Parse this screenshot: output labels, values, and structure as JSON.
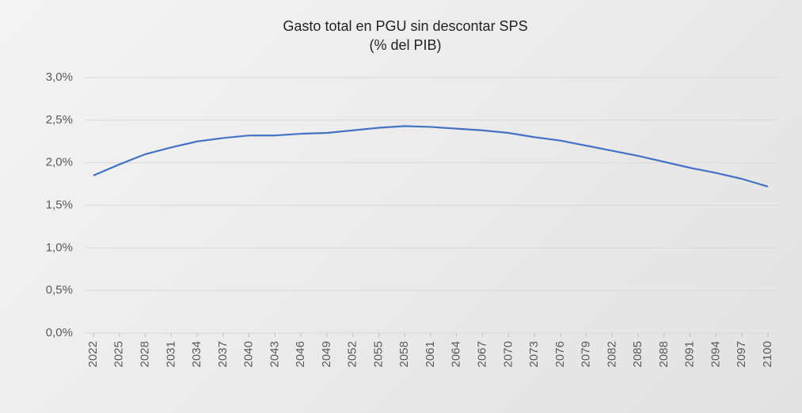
{
  "chart_data": {
    "type": "line",
    "title": "Gasto total en PGU sin descontar SPS",
    "subtitle": "(% del PIB)",
    "x": [
      2022,
      2025,
      2028,
      2031,
      2034,
      2037,
      2040,
      2043,
      2046,
      2049,
      2052,
      2055,
      2058,
      2061,
      2064,
      2067,
      2070,
      2073,
      2076,
      2079,
      2082,
      2085,
      2088,
      2091,
      2094,
      2097,
      2100
    ],
    "xlim": [
      2022,
      2100
    ],
    "xticks": [
      2022,
      2025,
      2028,
      2031,
      2034,
      2037,
      2040,
      2043,
      2046,
      2049,
      2052,
      2055,
      2058,
      2061,
      2064,
      2067,
      2070,
      2073,
      2076,
      2079,
      2082,
      2085,
      2088,
      2091,
      2094,
      2097,
      2100
    ],
    "series": [
      {
        "color": "#4472c4",
        "values": [
          1.85,
          1.98,
          2.1,
          2.18,
          2.25,
          2.29,
          2.32,
          2.32,
          2.34,
          2.35,
          2.38,
          2.41,
          2.43,
          2.42,
          2.4,
          2.38,
          2.35,
          2.3,
          2.26,
          2.2,
          2.14,
          2.08,
          2.01,
          1.94,
          1.88,
          1.81,
          1.72
        ]
      }
    ],
    "ylim": [
      0,
      3
    ],
    "yticks": [
      {
        "value": 0,
        "label": "0,0%"
      },
      {
        "value": 0.5,
        "label": "0,5%"
      },
      {
        "value": 1,
        "label": "1,0%"
      },
      {
        "value": 1.5,
        "label": "1,5%"
      },
      {
        "value": 2,
        "label": "2,0%"
      },
      {
        "value": 2.5,
        "label": "2,5%"
      },
      {
        "value": 3,
        "label": "3,0%"
      }
    ],
    "grid": true
  }
}
